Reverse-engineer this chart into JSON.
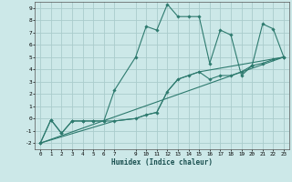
{
  "background_color": "#cce8e8",
  "grid_color": "#aacccc",
  "line_color": "#2d7a6e",
  "xlabel": "Humidex (Indice chaleur)",
  "xlim": [
    -0.5,
    23.5
  ],
  "ylim": [
    -2.5,
    9.5
  ],
  "xticks": [
    0,
    1,
    2,
    3,
    4,
    5,
    6,
    7,
    9,
    10,
    11,
    12,
    13,
    14,
    15,
    16,
    17,
    18,
    19,
    20,
    21,
    22,
    23
  ],
  "yticks": [
    -2,
    -1,
    0,
    1,
    2,
    3,
    4,
    5,
    6,
    7,
    8,
    9
  ],
  "series": [
    {
      "x": [
        0,
        1,
        2,
        3,
        4,
        5,
        6,
        7,
        9,
        10,
        11,
        12,
        13,
        14,
        15,
        16,
        17,
        18,
        19,
        20,
        21,
        22,
        23
      ],
      "y": [
        -2,
        -0.1,
        -1.2,
        -0.2,
        -0.2,
        -0.2,
        -0.2,
        2.3,
        5.0,
        7.5,
        7.2,
        9.3,
        8.3,
        8.3,
        8.3,
        4.5,
        7.2,
        6.8,
        3.5,
        4.3,
        7.7,
        7.3,
        5.0
      ],
      "marker": "D",
      "markersize": 1.8,
      "linewidth": 0.8
    },
    {
      "x": [
        0,
        1,
        2,
        3,
        4,
        5,
        6,
        7,
        9,
        10,
        11,
        12,
        13,
        14,
        15,
        16,
        17,
        18,
        19,
        20,
        21,
        22,
        23
      ],
      "y": [
        -2,
        -0.1,
        -1.2,
        -0.2,
        -0.2,
        -0.2,
        -0.2,
        -0.2,
        0.0,
        0.3,
        0.5,
        2.2,
        3.2,
        3.5,
        3.8,
        3.2,
        3.5,
        3.5,
        3.8,
        4.3,
        4.5,
        4.8,
        5.0
      ],
      "marker": "D",
      "markersize": 1.8,
      "linewidth": 0.8
    },
    {
      "x": [
        0,
        23
      ],
      "y": [
        -2,
        5.0
      ],
      "marker": null,
      "markersize": 0,
      "linewidth": 0.8
    },
    {
      "x": [
        0,
        7,
        9,
        10,
        11,
        12,
        13,
        14,
        15,
        23
      ],
      "y": [
        -2,
        -0.2,
        0.0,
        0.3,
        0.5,
        2.2,
        3.2,
        3.5,
        3.8,
        5.0
      ],
      "marker": null,
      "markersize": 0,
      "linewidth": 0.8
    }
  ]
}
